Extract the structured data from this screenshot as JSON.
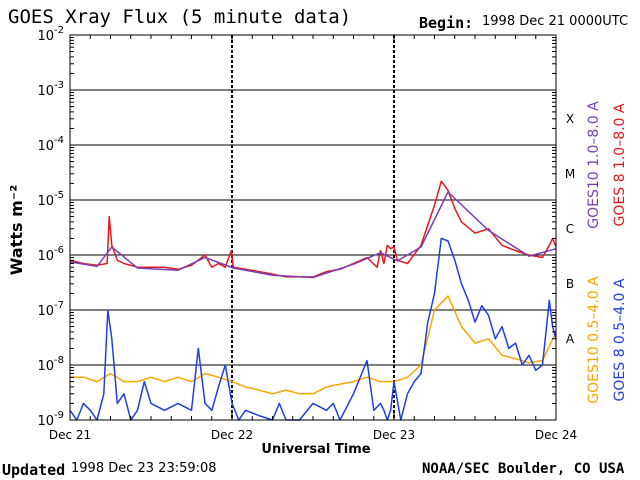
{
  "header": {
    "title": "GOES Xray Flux (5 minute data)",
    "begin_label": "Begin:",
    "begin_value": "1998 Dec 21 0000UTC"
  },
  "footer": {
    "updated_label": "Updated",
    "updated_value": "1998 Dec 23 23:59:08",
    "credit": "NOAA/SEC Boulder, CO USA"
  },
  "colors": {
    "goes10_long": "#7b3fb5",
    "goes8_long": "#e31a1c",
    "goes10_short": "#ffa500",
    "goes8_short": "#1f3fe0",
    "grid": "#000000"
  },
  "chart_data": {
    "type": "line",
    "title": "GOES Xray Flux (5 minute data)",
    "xlabel": "Universal Time",
    "ylabel": "Watts m⁻²",
    "y_scale": "log",
    "ylim": [
      1e-09,
      0.01
    ],
    "xlim": [
      "1998-12-21 00:00",
      "1998-12-24 00:00"
    ],
    "x_ticks": [
      "Dec 21",
      "Dec 22",
      "Dec 23",
      "Dec 24"
    ],
    "y_ticks": [
      {
        "value": 1e-09,
        "base": "10",
        "exp": "-9"
      },
      {
        "value": 1e-08,
        "base": "10",
        "exp": "-8"
      },
      {
        "value": 1e-07,
        "base": "10",
        "exp": "-7"
      },
      {
        "value": 1e-06,
        "base": "10",
        "exp": "-6"
      },
      {
        "value": 1e-05,
        "base": "10",
        "exp": "-5"
      },
      {
        "value": 0.0001,
        "base": "10",
        "exp": "-4"
      },
      {
        "value": 0.001,
        "base": "10",
        "exp": "-3"
      },
      {
        "value": 0.01,
        "base": "10",
        "exp": "-2"
      }
    ],
    "flare_classes": [
      {
        "label": "X",
        "value": 0.0003
      },
      {
        "label": "M",
        "value": 3e-05
      },
      {
        "label": "C",
        "value": 3e-06
      },
      {
        "label": "B",
        "value": 3e-07
      },
      {
        "label": "A",
        "value": 3e-08
      }
    ],
    "grid": true,
    "legend": [
      {
        "text": "GOES10 1.0–8.0 A",
        "color": "#7b3fb5"
      },
      {
        "text": "GOES 8 1.0–8.0 A",
        "color": "#e31a1c"
      },
      {
        "text": "GOES10 0.5–4.0 A",
        "color": "#ffa500"
      },
      {
        "text": "GOES 8 0.5–4.0 A",
        "color": "#1f3fe0"
      }
    ],
    "legend_placement": "right, vertical",
    "series": [
      {
        "name": "GOES 8 1.0–8.0 A",
        "color": "#e31a1c",
        "x_hours": [
          0,
          2,
          4,
          5.5,
          5.8,
          6.2,
          7,
          8,
          10,
          14,
          16,
          18,
          20,
          21,
          22,
          23,
          23.9,
          24.2,
          26,
          28,
          30,
          32,
          34,
          36,
          38,
          40,
          42,
          44,
          45.5,
          46,
          46.5,
          47,
          47.5,
          48,
          48.5,
          50,
          52,
          54,
          55,
          56,
          57,
          58,
          60,
          62,
          64,
          66,
          68,
          70,
          71,
          71.5,
          72
        ],
        "values": [
          8e-07,
          7e-07,
          6.5e-07,
          7e-07,
          5e-06,
          1.5e-06,
          8e-07,
          7e-07,
          6e-07,
          6e-07,
          5.5e-07,
          6.5e-07,
          1e-06,
          6e-07,
          7e-07,
          6e-07,
          1.2e-06,
          6e-07,
          5.5e-07,
          5e-07,
          4.5e-07,
          4e-07,
          4e-07,
          4e-07,
          5e-07,
          5.5e-07,
          7e-07,
          9e-07,
          6e-07,
          1.2e-06,
          7e-07,
          1.5e-06,
          1.3e-06,
          1.4e-06,
          8e-07,
          7e-07,
          1.5e-06,
          8e-06,
          2.2e-05,
          1.5e-05,
          7e-06,
          4e-06,
          2.5e-06,
          3e-06,
          1.5e-06,
          1.2e-06,
          1e-06,
          9e-07,
          1.5e-06,
          2e-06,
          1.4e-06
        ]
      },
      {
        "name": "GOES10 1.0–8.0 A",
        "color": "#7b3fb5",
        "x_hours": [
          0,
          4,
          6.2,
          10,
          16,
          20,
          24.2,
          30,
          36,
          42,
          46,
          48.5,
          52,
          56,
          62,
          68,
          72
        ],
        "values": [
          7.5e-07,
          6.2e-07,
          1.4e-06,
          5.8e-07,
          5.3e-07,
          9e-07,
          5.8e-07,
          4.3e-07,
          3.9e-07,
          6.8e-07,
          1.1e-06,
          7.8e-07,
          1.4e-06,
          1.4e-05,
          2.8e-06,
          9.5e-07,
          1.3e-06
        ]
      },
      {
        "name": "GOES10 0.5–4.0 A",
        "color": "#ffa500",
        "x_hours": [
          0,
          2,
          4,
          6,
          8,
          10,
          12,
          14,
          16,
          18,
          20,
          22,
          24,
          26,
          28,
          30,
          32,
          34,
          36,
          38,
          40,
          42,
          44,
          46,
          48,
          50,
          52,
          54,
          56,
          58,
          60,
          62,
          64,
          66,
          68,
          70,
          72
        ],
        "values": [
          6e-09,
          6e-09,
          5e-09,
          7e-09,
          5e-09,
          5e-09,
          6e-09,
          5e-09,
          6e-09,
          5e-09,
          7e-09,
          6e-09,
          5e-09,
          4e-09,
          3.5e-09,
          3e-09,
          3.5e-09,
          3e-09,
          3e-09,
          4e-09,
          4.5e-09,
          5e-09,
          6e-09,
          5e-09,
          5e-09,
          6e-09,
          1e-08,
          1e-07,
          1.8e-07,
          5e-08,
          2.5e-08,
          3e-08,
          1.5e-08,
          1.3e-08,
          1.1e-08,
          1.2e-08,
          4e-08
        ]
      },
      {
        "name": "GOES 8 0.5–4.0 A",
        "color": "#1f3fe0",
        "x_hours": [
          0,
          1,
          2,
          3,
          4,
          5,
          5.6,
          6.2,
          7,
          8,
          9,
          10,
          11,
          12,
          14,
          16,
          18,
          19,
          20,
          21,
          22,
          23,
          24,
          25,
          26,
          28,
          30,
          31,
          32,
          34,
          36,
          38,
          39,
          40,
          42,
          44,
          45,
          46,
          46.5,
          47,
          47.5,
          48,
          49,
          50,
          51,
          52,
          53,
          54,
          55,
          56,
          57,
          58,
          59,
          60,
          61,
          62,
          63,
          64,
          65,
          66,
          67,
          68,
          69,
          70,
          71,
          71.5,
          72
        ],
        "values": [
          1.5e-09,
          1e-09,
          2e-09,
          1.5e-09,
          1e-09,
          3e-09,
          1e-07,
          3e-08,
          2e-09,
          3e-09,
          1e-09,
          1.5e-09,
          5e-09,
          2e-09,
          1.5e-09,
          2e-09,
          1.5e-09,
          2e-08,
          2e-09,
          1.5e-09,
          4e-09,
          1e-08,
          2e-09,
          1e-09,
          1.5e-09,
          1.2e-09,
          1e-09,
          2e-09,
          1e-09,
          1e-09,
          2e-09,
          1.5e-09,
          2e-09,
          1e-09,
          3e-09,
          1.2e-08,
          1.5e-09,
          2e-09,
          1.5e-09,
          1e-09,
          1.5e-09,
          5e-09,
          1e-09,
          3e-09,
          5e-09,
          7e-09,
          6e-08,
          2e-07,
          2e-06,
          1.8e-06,
          8e-07,
          3e-07,
          1.5e-07,
          6e-08,
          1.2e-07,
          8e-08,
          3e-08,
          5e-08,
          2e-08,
          2.5e-08,
          1e-08,
          1.5e-08,
          8e-09,
          1e-08,
          1.5e-07,
          5e-08,
          3e-08
        ]
      }
    ]
  }
}
